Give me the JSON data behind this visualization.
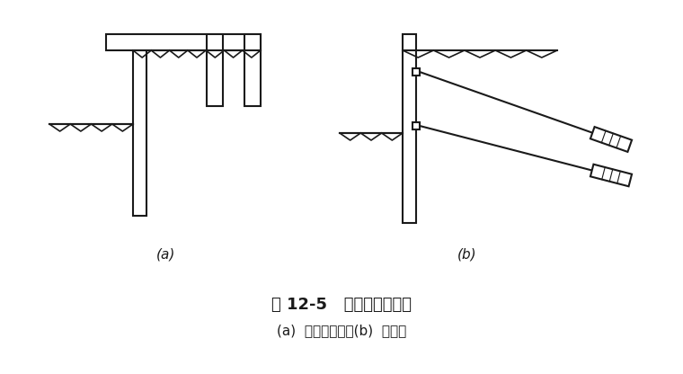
{
  "title": "图 12-5   拉锁式支护结构",
  "subtitle": "(a)  地面拉锁式；(b)  锁杆式",
  "bg_color": "#ffffff",
  "line_color": "#1a1a1a",
  "fig_width": 7.6,
  "fig_height": 4.16,
  "label_a": "(a)",
  "label_b": "(b)"
}
